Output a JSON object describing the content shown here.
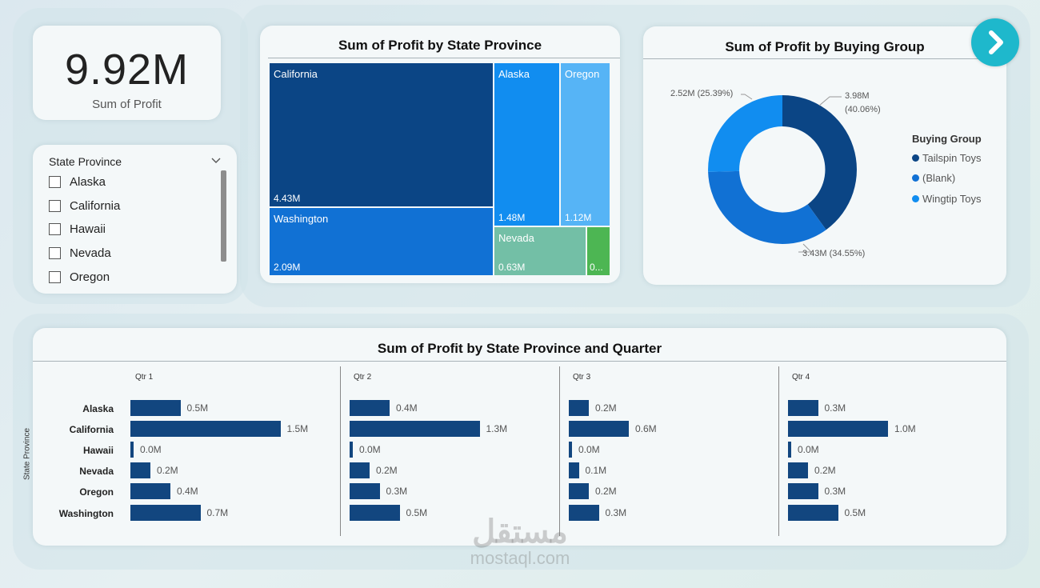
{
  "kpi": {
    "value": "9.92M",
    "label": "Sum of Profit"
  },
  "slicer": {
    "title": "State Province",
    "items": [
      "Alaska",
      "California",
      "Hawaii",
      "Nevada",
      "Oregon"
    ]
  },
  "treemap": {
    "title": "Sum of Profit by State Province",
    "tiles": [
      {
        "name": "California",
        "value": "4.43M",
        "color": "#0b4585"
      },
      {
        "name": "Washington",
        "value": "2.09M",
        "color": "#1171d4"
      },
      {
        "name": "Alaska",
        "value": "1.48M",
        "color": "#118df0"
      },
      {
        "name": "Oregon",
        "value": "1.12M",
        "color": "#56b4f6"
      },
      {
        "name": "Nevada",
        "value": "0.63M",
        "color": "#73bfa6"
      },
      {
        "name": "",
        "value": "0...",
        "color": "#4db653"
      }
    ]
  },
  "donut": {
    "title": "Sum of Profit by Buying Group",
    "legend_title": "Buying Group",
    "legend": [
      "Tailspin Toys",
      "(Blank)",
      "Wingtip Toys"
    ],
    "labels": {
      "tailspin_value": "3.98M",
      "tailspin_pct": "(40.06%)",
      "blank": "3.43M (34.55%)",
      "wingtip": "2.52M (25.39%)"
    }
  },
  "bars": {
    "title": "Sum of Profit by State Province and Quarter",
    "ylabel": "State Province",
    "quarters": [
      "Qtr 1",
      "Qtr 2",
      "Qtr 3",
      "Qtr 4"
    ],
    "categories": [
      "Alaska",
      "California",
      "Hawaii",
      "Nevada",
      "Oregon",
      "Washington"
    ]
  },
  "colors": {
    "tailspin": "#0b4585",
    "blank": "#1171d4",
    "wingtip": "#118df0",
    "bar": "#12467f",
    "next_button": "#1eb8cc"
  },
  "icons": {
    "next": "chevron-right-icon",
    "dropdown": "chevron-down-icon"
  },
  "watermark": {
    "arabic": "مستقل",
    "latin": "mostaql.com"
  },
  "chart_data": [
    {
      "type": "treemap",
      "title": "Sum of Profit by State Province",
      "categories": [
        "California",
        "Washington",
        "Alaska",
        "Oregon",
        "Nevada",
        "Hawaii"
      ],
      "values": [
        4.43,
        2.09,
        1.48,
        1.12,
        0.63,
        0.17
      ]
    },
    {
      "type": "pie",
      "title": "Sum of Profit by Buying Group",
      "legend_position": "right",
      "categories": [
        "Tailspin Toys",
        "(Blank)",
        "Wingtip Toys"
      ],
      "values": [
        3.98,
        3.43,
        2.52
      ],
      "percent": [
        40.06,
        34.55,
        25.39
      ]
    },
    {
      "type": "bar",
      "orientation": "horizontal",
      "title": "Sum of Profit by State Province and Quarter",
      "ylabel": "State Province",
      "categories": [
        "Alaska",
        "California",
        "Hawaii",
        "Nevada",
        "Oregon",
        "Washington"
      ],
      "xlim": [
        0,
        2.0
      ],
      "series": [
        {
          "name": "Qtr 1",
          "values": [
            0.5,
            1.5,
            0.0,
            0.2,
            0.4,
            0.7
          ],
          "labels": [
            "0.5M",
            "1.5M",
            "0.0M",
            "0.2M",
            "0.4M",
            "0.7M"
          ]
        },
        {
          "name": "Qtr 2",
          "values": [
            0.4,
            1.3,
            0.0,
            0.2,
            0.3,
            0.5
          ],
          "labels": [
            "0.4M",
            "1.3M",
            "0.0M",
            "0.2M",
            "0.3M",
            "0.5M"
          ]
        },
        {
          "name": "Qtr 3",
          "values": [
            0.2,
            0.6,
            0.0,
            0.1,
            0.2,
            0.3
          ],
          "labels": [
            "0.2M",
            "0.6M",
            "0.0M",
            "0.1M",
            "0.2M",
            "0.3M"
          ]
        },
        {
          "name": "Qtr 4",
          "values": [
            0.3,
            1.0,
            0.0,
            0.2,
            0.3,
            0.5
          ],
          "labels": [
            "0.3M",
            "1.0M",
            "0.0M",
            "0.2M",
            "0.3M",
            "0.5M"
          ]
        }
      ]
    }
  ]
}
